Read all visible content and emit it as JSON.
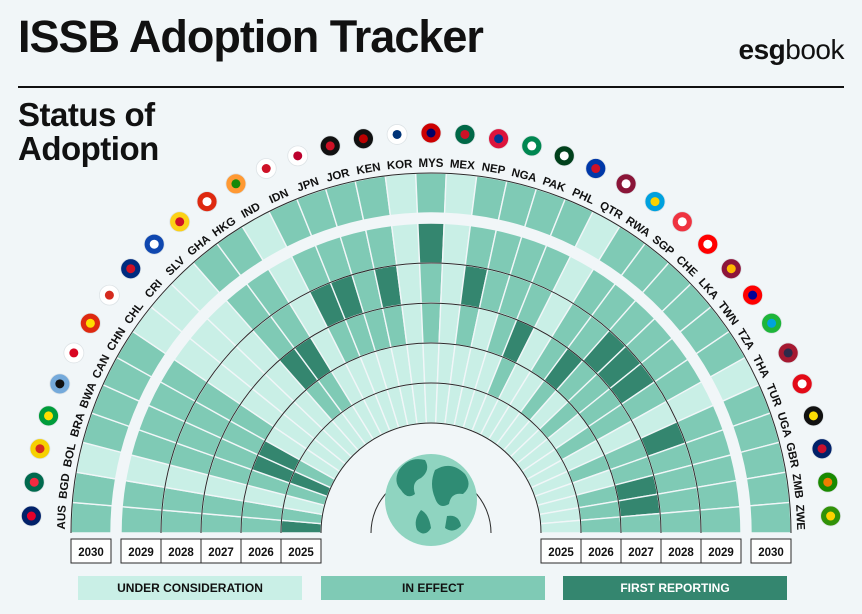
{
  "header": {
    "title": "ISSB Adoption Tracker",
    "brand_bold": "esg",
    "brand_light": "book",
    "subtitle_line1": "Status of",
    "subtitle_line2": "Adoption"
  },
  "legend": [
    {
      "label": "UNDER CONSIDERATION",
      "color": "#c9efe6",
      "text_color": "#111111"
    },
    {
      "label": "IN EFFECT",
      "color": "#7fcab5",
      "text_color": "#111111"
    },
    {
      "label": "FIRST REPORTING",
      "color": "#34866f",
      "text_color": "#ffffff"
    }
  ],
  "chart_data": {
    "type": "radial-timeline",
    "statuses": [
      "UNDER CONSIDERATION",
      "IN EFFECT",
      "FIRST REPORTING"
    ],
    "years_left": [
      "2025",
      "2026",
      "2027",
      "2028",
      "2029",
      "2030"
    ],
    "years_right": [
      "2030",
      "2029",
      "2028",
      "2027",
      "2026",
      "2025"
    ],
    "countries": [
      "AUS",
      "BGD",
      "BOL",
      "BRA",
      "BWA",
      "CAN",
      "CHN",
      "CHL",
      "CRI",
      "SLV",
      "GHA",
      "HKG",
      "IND",
      "IDN",
      "JPN",
      "JOR",
      "KEN",
      "KOR",
      "MYS",
      "MEX",
      "NEP",
      "NGA",
      "PAK",
      "PHL",
      "QTR",
      "RWA",
      "SGP",
      "CHE",
      "LKA",
      "TWN",
      "TZA",
      "THA",
      "TUR",
      "UGA",
      "GBR",
      "ZMB",
      "ZWE"
    ],
    "status_by_year": [
      [
        2,
        1,
        1,
        1,
        1,
        1
      ],
      [
        1,
        1,
        1,
        1,
        1,
        1
      ],
      [
        0,
        0,
        0,
        0,
        0,
        0
      ],
      [
        1,
        1,
        1,
        1,
        1,
        1
      ],
      [
        2,
        2,
        1,
        1,
        1,
        1
      ],
      [
        1,
        2,
        1,
        1,
        1,
        1
      ],
      [
        0,
        0,
        1,
        1,
        1,
        1
      ],
      [
        0,
        0,
        0,
        0,
        0,
        0
      ],
      [
        0,
        0,
        0,
        0,
        0,
        0
      ],
      [
        0,
        0,
        0,
        0,
        0,
        0
      ],
      [
        0,
        1,
        2,
        1,
        1,
        1
      ],
      [
        0,
        1,
        2,
        1,
        1,
        1
      ],
      [
        0,
        0,
        0,
        0,
        0,
        0
      ],
      [
        0,
        0,
        1,
        2,
        1,
        1
      ],
      [
        0,
        0,
        1,
        2,
        1,
        1
      ],
      [
        0,
        0,
        1,
        1,
        1,
        1
      ],
      [
        0,
        0,
        1,
        2,
        1,
        1
      ],
      [
        0,
        0,
        0,
        0,
        0,
        0
      ],
      [
        0,
        0,
        1,
        1,
        2,
        1
      ],
      [
        0,
        0,
        0,
        0,
        0,
        0
      ],
      [
        0,
        0,
        1,
        2,
        1,
        1
      ],
      [
        0,
        0,
        0,
        1,
        1,
        1
      ],
      [
        0,
        0,
        1,
        1,
        1,
        1
      ],
      [
        0,
        1,
        2,
        1,
        1,
        1
      ],
      [
        0,
        0,
        0,
        0,
        0,
        0
      ],
      [
        0,
        0,
        1,
        1,
        1,
        1
      ],
      [
        0,
        1,
        2,
        1,
        1,
        1
      ],
      [
        0,
        0,
        1,
        2,
        1,
        1
      ],
      [
        0,
        1,
        1,
        2,
        1,
        1
      ],
      [
        0,
        0,
        1,
        2,
        1,
        1
      ],
      [
        0,
        1,
        1,
        1,
        1,
        1
      ],
      [
        0,
        0,
        0,
        0,
        0,
        0
      ],
      [
        0,
        1,
        1,
        2,
        1,
        1
      ],
      [
        0,
        0,
        1,
        1,
        1,
        1
      ],
      [
        0,
        1,
        2,
        1,
        1,
        1
      ],
      [
        0,
        1,
        2,
        1,
        1,
        1
      ],
      [
        0,
        1,
        1,
        1,
        1,
        1
      ]
    ],
    "flags": [
      {
        "bg": "#012169",
        "mark": "#e4002b"
      },
      {
        "bg": "#006a4e",
        "mark": "#f42a41"
      },
      {
        "bg": "#f6d100",
        "mark": "#d52b1e"
      },
      {
        "bg": "#009c3b",
        "mark": "#ffdf00"
      },
      {
        "bg": "#75aadb",
        "mark": "#111111"
      },
      {
        "bg": "#ffffff",
        "mark": "#d80621"
      },
      {
        "bg": "#de2910",
        "mark": "#ffde00"
      },
      {
        "bg": "#ffffff",
        "mark": "#d52b1e"
      },
      {
        "bg": "#002b7f",
        "mark": "#ce1126"
      },
      {
        "bg": "#0f47af",
        "mark": "#ffffff"
      },
      {
        "bg": "#fcd116",
        "mark": "#ce1126"
      },
      {
        "bg": "#de2910",
        "mark": "#ffffff"
      },
      {
        "bg": "#ff9933",
        "mark": "#138808"
      },
      {
        "bg": "#ffffff",
        "mark": "#ce1126"
      },
      {
        "bg": "#ffffff",
        "mark": "#bc002d"
      },
      {
        "bg": "#111111",
        "mark": "#ce1126"
      },
      {
        "bg": "#111111",
        "mark": "#bb0000"
      },
      {
        "bg": "#ffffff",
        "mark": "#003478"
      },
      {
        "bg": "#cc0001",
        "mark": "#010066"
      },
      {
        "bg": "#006847",
        "mark": "#ce1126"
      },
      {
        "bg": "#dc143c",
        "mark": "#003893"
      },
      {
        "bg": "#008751",
        "mark": "#ffffff"
      },
      {
        "bg": "#01411c",
        "mark": "#ffffff"
      },
      {
        "bg": "#0038a8",
        "mark": "#ce1126"
      },
      {
        "bg": "#8a1538",
        "mark": "#ffffff"
      },
      {
        "bg": "#00a1de",
        "mark": "#fad201"
      },
      {
        "bg": "#ef3340",
        "mark": "#ffffff"
      },
      {
        "bg": "#ff0000",
        "mark": "#ffffff"
      },
      {
        "bg": "#8d153a",
        "mark": "#ffb700"
      },
      {
        "bg": "#fe0000",
        "mark": "#000095"
      },
      {
        "bg": "#1eb53a",
        "mark": "#00a3dd"
      },
      {
        "bg": "#a51931",
        "mark": "#2d2a4a"
      },
      {
        "bg": "#e30a17",
        "mark": "#ffffff"
      },
      {
        "bg": "#111111",
        "mark": "#fcdc04"
      },
      {
        "bg": "#012169",
        "mark": "#c8102e"
      },
      {
        "bg": "#198a00",
        "mark": "#ef7d00"
      },
      {
        "bg": "#319208",
        "mark": "#ffd200"
      }
    ]
  },
  "icons": {
    "globe": "globe-icon"
  }
}
